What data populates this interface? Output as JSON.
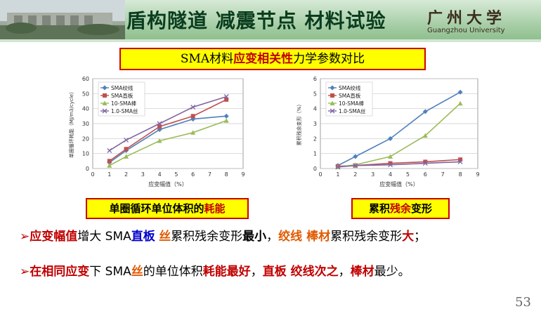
{
  "header": {
    "title": "盾构隧道 减震节点 材料试验",
    "university_cn": "广州大学",
    "university_en": "Guangzhou University"
  },
  "heading": {
    "part1": "SMA材料",
    "highlight": "应变相关性",
    "part2": "力学参数对比"
  },
  "captions": {
    "left_part1": "单圈循环单位体积的",
    "left_highlight": "耗能",
    "right_part1": "累积",
    "right_highlight": "残余",
    "right_part2": "变形"
  },
  "notes": {
    "line1": [
      {
        "t": "应变幅值",
        "c": "r"
      },
      {
        "t": "增大 SMA",
        "c": ""
      },
      {
        "t": "直板",
        "c": "b"
      },
      {
        "t": " ",
        "c": ""
      },
      {
        "t": "丝",
        "c": "o"
      },
      {
        "t": "累积残余变形",
        "c": ""
      },
      {
        "t": "最小",
        "c": "k"
      },
      {
        "t": "，",
        "c": ""
      },
      {
        "t": "绞线 棒材",
        "c": "o"
      },
      {
        "t": "累积残余变形",
        "c": ""
      },
      {
        "t": "大",
        "c": "r"
      },
      {
        "t": "；",
        "c": ""
      }
    ],
    "line2": [
      {
        "t": "在相同应变",
        "c": "r"
      },
      {
        "t": "下 SMA",
        "c": ""
      },
      {
        "t": "丝",
        "c": "o"
      },
      {
        "t": "的单位体积",
        "c": ""
      },
      {
        "t": "耗能最好",
        "c": "r"
      },
      {
        "t": "，",
        "c": ""
      },
      {
        "t": "直板 绞线次之",
        "c": "r"
      },
      {
        "t": "，",
        "c": ""
      },
      {
        "t": "棒材",
        "c": "r"
      },
      {
        "t": "最少。",
        "c": ""
      }
    ]
  },
  "page_number": "53",
  "chart_data": [
    {
      "type": "line",
      "title": "",
      "xlabel": "应变幅值（%）",
      "ylabel": "单圈循环耗能（MJ/m3/cycle）",
      "xlim": [
        0,
        9
      ],
      "ylim": [
        0,
        60
      ],
      "xticks": [
        0,
        1,
        2,
        3,
        4,
        5,
        6,
        7,
        8,
        9
      ],
      "yticks": [
        0,
        10,
        20,
        30,
        40,
        50,
        60
      ],
      "grid": true,
      "legend": "top-left",
      "x": [
        1,
        2,
        4,
        6,
        8
      ],
      "series": [
        {
          "name": "SMA绞线",
          "color": "#4f81bd",
          "marker": "diamond",
          "values": [
            4,
            12,
            26,
            33,
            35
          ]
        },
        {
          "name": "SMA直板",
          "color": "#c0504d",
          "marker": "square",
          "values": [
            5,
            13,
            28,
            35,
            46
          ]
        },
        {
          "name": "10-SMA棒",
          "color": "#9bbb59",
          "marker": "triangle",
          "values": [
            2,
            8,
            18.5,
            24,
            32
          ]
        },
        {
          "name": "1.0-SMA丝",
          "color": "#8064a2",
          "marker": "x",
          "values": [
            12,
            19,
            30,
            41,
            48
          ]
        }
      ]
    },
    {
      "type": "line",
      "title": "",
      "xlabel": "应变幅值（%）",
      "ylabel": "累积残余变形（%）",
      "xlim": [
        0,
        9
      ],
      "ylim": [
        0,
        6
      ],
      "xticks": [
        0,
        1,
        2,
        3,
        4,
        5,
        6,
        7,
        8,
        9
      ],
      "yticks": [
        0,
        1,
        2,
        3,
        4,
        5,
        6
      ],
      "grid": true,
      "legend": "top-left",
      "x": [
        1,
        2,
        4,
        6,
        8
      ],
      "series": [
        {
          "name": "SMA绞线",
          "color": "#4f81bd",
          "marker": "diamond",
          "values": [
            0.2,
            0.8,
            2.0,
            3.8,
            5.1
          ]
        },
        {
          "name": "SMA直板",
          "color": "#c0504d",
          "marker": "square",
          "values": [
            0.15,
            0.2,
            0.35,
            0.45,
            0.6
          ]
        },
        {
          "name": "10-SMA棒",
          "color": "#9bbb59",
          "marker": "triangle",
          "values": [
            0.1,
            0.25,
            0.8,
            2.2,
            4.35
          ]
        },
        {
          "name": "1.0-SMA丝",
          "color": "#8064a2",
          "marker": "x",
          "values": [
            0.1,
            0.2,
            0.25,
            0.35,
            0.45
          ]
        }
      ]
    }
  ]
}
